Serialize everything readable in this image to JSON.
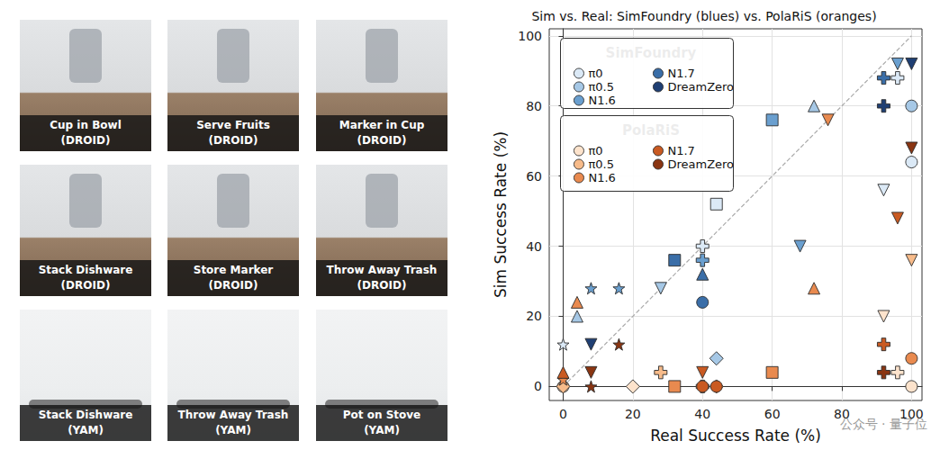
{
  "images": [
    {
      "title": "Cup in Bowl",
      "source": "(DROID)"
    },
    {
      "title": "Serve Fruits",
      "source": "(DROID)"
    },
    {
      "title": "Marker in Cup",
      "source": "(DROID)"
    },
    {
      "title": "Stack Dishware",
      "source": "(DROID)"
    },
    {
      "title": "Store Marker",
      "source": "(DROID)"
    },
    {
      "title": "Throw Away Trash",
      "source": "(DROID)"
    },
    {
      "title": "Stack Dishware",
      "source": "(YAM)"
    },
    {
      "title": "Throw Away Trash",
      "source": "(YAM)"
    },
    {
      "title": "Pot on Stove",
      "source": "(YAM)"
    }
  ],
  "watermark": "公众号 · 量子位",
  "chart_data": {
    "type": "scatter",
    "title": "Sim vs. Real: SimFoundry (blues) vs. PolaRiS (oranges)",
    "x_label": "Real Success Rate (%)",
    "y_label": "Sim Success Rate (%)",
    "xlim": [
      -4,
      103
    ],
    "ylim": [
      -4,
      102
    ],
    "xticks": [
      0,
      20,
      40,
      60,
      80,
      100
    ],
    "yticks": [
      0,
      20,
      40,
      60,
      80,
      100
    ],
    "grid": true,
    "legend": "upper left",
    "reference_line": {
      "x": [
        0,
        100
      ],
      "y": [
        0,
        100
      ],
      "color": "#aaaaaa",
      "line_style": "dashed"
    },
    "groups": [
      {
        "title": "SimFoundry",
        "series": [
          {
            "name": "π0",
            "color": "#dbe9f6",
            "points": [
              {
                "x": 0,
                "y": 12,
                "marker": "star"
              },
              {
                "x": 40,
                "y": 40,
                "marker": "plus"
              },
              {
                "x": 44,
                "y": 52,
                "marker": "square"
              },
              {
                "x": 92,
                "y": 56,
                "marker": "triangle_down"
              },
              {
                "x": 96,
                "y": 88,
                "marker": "plus"
              },
              {
                "x": 100,
                "y": 64,
                "marker": "circle"
              }
            ]
          },
          {
            "name": "π0.5",
            "color": "#a6c8e6",
            "points": [
              {
                "x": 4,
                "y": 20,
                "marker": "triangle"
              },
              {
                "x": 28,
                "y": 28,
                "marker": "triangle_down"
              },
              {
                "x": 72,
                "y": 80,
                "marker": "triangle"
              },
              {
                "x": 44,
                "y": 8,
                "marker": "diamond"
              },
              {
                "x": 100,
                "y": 80,
                "marker": "circle"
              }
            ]
          },
          {
            "name": "N1.6",
            "color": "#6a9fcf",
            "points": [
              {
                "x": 8,
                "y": 28,
                "marker": "star"
              },
              {
                "x": 16,
                "y": 28,
                "marker": "star"
              },
              {
                "x": 40,
                "y": 36,
                "marker": "plus"
              },
              {
                "x": 60,
                "y": 76,
                "marker": "square"
              },
              {
                "x": 68,
                "y": 40,
                "marker": "triangle_down"
              },
              {
                "x": 96,
                "y": 92,
                "marker": "triangle_down"
              }
            ]
          },
          {
            "name": "N1.7",
            "color": "#3a6ea8",
            "points": [
              {
                "x": 32,
                "y": 36,
                "marker": "square"
              },
              {
                "x": 40,
                "y": 32,
                "marker": "triangle"
              },
              {
                "x": 40,
                "y": 24,
                "marker": "circle"
              },
              {
                "x": 92,
                "y": 88,
                "marker": "plus"
              }
            ]
          },
          {
            "name": "DreamZero",
            "color": "#1f3f73",
            "points": [
              {
                "x": 8,
                "y": 12,
                "marker": "triangle_down"
              },
              {
                "x": 92,
                "y": 80,
                "marker": "plus"
              },
              {
                "x": 100,
                "y": 92,
                "marker": "triangle_down"
              }
            ]
          }
        ]
      },
      {
        "title": "PolaRiS",
        "series": [
          {
            "name": "π0",
            "color": "#fde3cc",
            "points": [
              {
                "x": 0,
                "y": 0,
                "marker": "circle"
              },
              {
                "x": 20,
                "y": 0,
                "marker": "diamond"
              },
              {
                "x": 40,
                "y": 0,
                "marker": "plus"
              },
              {
                "x": 92,
                "y": 20,
                "marker": "triangle_down"
              },
              {
                "x": 96,
                "y": 4,
                "marker": "plus"
              },
              {
                "x": 100,
                "y": 0,
                "marker": "circle"
              }
            ]
          },
          {
            "name": "π0.5",
            "color": "#f7bb8a",
            "points": [
              {
                "x": 0,
                "y": 0,
                "marker": "diamond"
              },
              {
                "x": 44,
                "y": 0,
                "marker": "diamond"
              },
              {
                "x": 100,
                "y": 36,
                "marker": "triangle_down"
              },
              {
                "x": 28,
                "y": 4,
                "marker": "plus"
              }
            ]
          },
          {
            "name": "N1.6",
            "color": "#e98a4f",
            "points": [
              {
                "x": 4,
                "y": 24,
                "marker": "triangle"
              },
              {
                "x": 0,
                "y": 2,
                "marker": "star"
              },
              {
                "x": 32,
                "y": 0,
                "marker": "square"
              },
              {
                "x": 60,
                "y": 4,
                "marker": "square"
              },
              {
                "x": 72,
                "y": 28,
                "marker": "triangle"
              },
              {
                "x": 76,
                "y": 76,
                "marker": "triangle_down"
              },
              {
                "x": 100,
                "y": 8,
                "marker": "circle"
              }
            ]
          },
          {
            "name": "N1.7",
            "color": "#c95a22",
            "points": [
              {
                "x": 0,
                "y": 4,
                "marker": "triangle"
              },
              {
                "x": 40,
                "y": 4,
                "marker": "triangle_down"
              },
              {
                "x": 44,
                "y": 0,
                "marker": "circle"
              },
              {
                "x": 92,
                "y": 12,
                "marker": "plus"
              },
              {
                "x": 96,
                "y": 48,
                "marker": "triangle_down"
              },
              {
                "x": 40,
                "y": 0,
                "marker": "circle"
              }
            ]
          },
          {
            "name": "DreamZero",
            "color": "#8a3512",
            "points": [
              {
                "x": 8,
                "y": 4,
                "marker": "triangle_down"
              },
              {
                "x": 8,
                "y": 0,
                "marker": "star"
              },
              {
                "x": 16,
                "y": 12,
                "marker": "star"
              },
              {
                "x": 92,
                "y": 4,
                "marker": "plus"
              },
              {
                "x": 100,
                "y": 68,
                "marker": "triangle_down"
              }
            ]
          }
        ]
      }
    ]
  }
}
